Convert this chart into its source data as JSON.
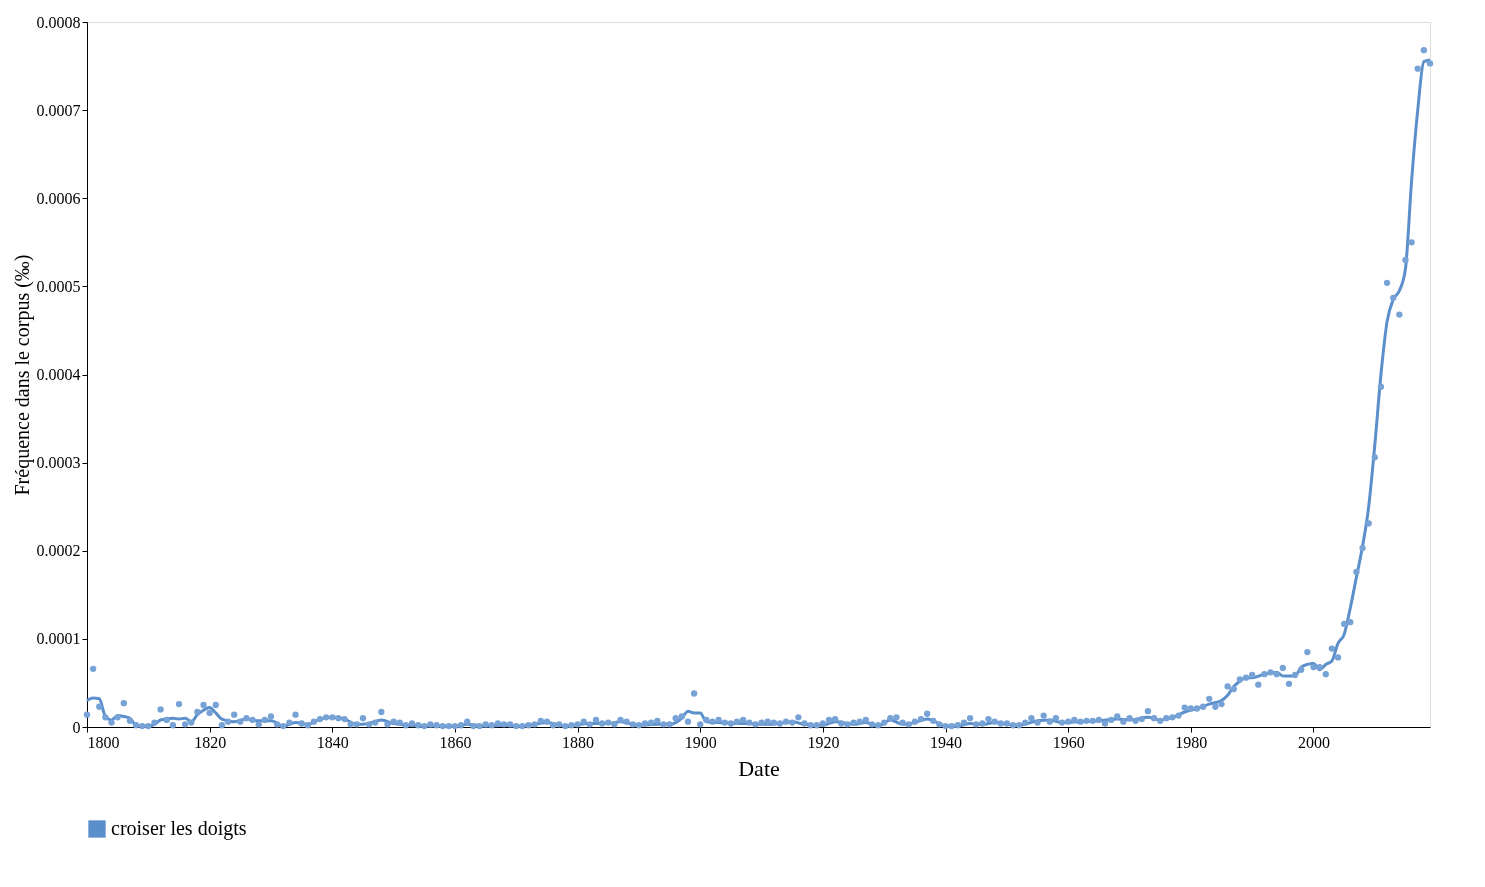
{
  "chart_data": {
    "type": "scatter",
    "xlabel": "Date",
    "ylabel": "Fréquence dans le corpus (‰)",
    "xlim": [
      1800,
      2019
    ],
    "xticks": [
      1800,
      1820,
      1840,
      1860,
      1880,
      1900,
      1920,
      1940,
      1960,
      1980,
      2000
    ],
    "ylim": [
      0,
      0.0008
    ],
    "yticks": [
      0,
      0.0001,
      0.0002,
      0.0003,
      0.0004,
      0.0005,
      0.0006,
      0.0007,
      0.0008
    ],
    "grid": false,
    "legend": "bottom left",
    "series": [
      {
        "color": "#76a2d6",
        "marker": "circle",
        "x": [
          1800,
          1801,
          1802,
          1803,
          1804,
          1805,
          1806,
          1807,
          1808,
          1809,
          1810,
          1811,
          1812,
          1813,
          1814,
          1815,
          1816,
          1817,
          1818,
          1819,
          1820,
          1821,
          1822,
          1823,
          1824,
          1825,
          1826,
          1827,
          1828,
          1829,
          1830,
          1831,
          1832,
          1833,
          1834,
          1835,
          1836,
          1837,
          1838,
          1839,
          1840,
          1841,
          1842,
          1843,
          1844,
          1845,
          1846,
          1847,
          1848,
          1849,
          1850,
          1851,
          1852,
          1853,
          1854,
          1855,
          1856,
          1857,
          1858,
          1859,
          1860,
          1861,
          1862,
          1863,
          1864,
          1865,
          1866,
          1867,
          1868,
          1869,
          1870,
          1871,
          1872,
          1873,
          1874,
          1875,
          1876,
          1877,
          1878,
          1879,
          1880,
          1881,
          1882,
          1883,
          1884,
          1885,
          1886,
          1887,
          1888,
          1889,
          1890,
          1891,
          1892,
          1893,
          1894,
          1895,
          1896,
          1897,
          1898,
          1899,
          1900,
          1901,
          1902,
          1903,
          1904,
          1905,
          1906,
          1907,
          1908,
          1909,
          1910,
          1911,
          1912,
          1913,
          1914,
          1915,
          1916,
          1917,
          1918,
          1919,
          1920,
          1921,
          1922,
          1923,
          1924,
          1925,
          1926,
          1927,
          1928,
          1929,
          1930,
          1931,
          1932,
          1933,
          1934,
          1935,
          1936,
          1937,
          1938,
          1939,
          1940,
          1941,
          1942,
          1943,
          1944,
          1945,
          1946,
          1947,
          1948,
          1949,
          1950,
          1951,
          1952,
          1953,
          1954,
          1955,
          1956,
          1957,
          1958,
          1959,
          1960,
          1961,
          1962,
          1963,
          1964,
          1965,
          1966,
          1967,
          1968,
          1969,
          1970,
          1971,
          1972,
          1973,
          1974,
          1975,
          1976,
          1977,
          1978,
          1979,
          1980,
          1981,
          1982,
          1983,
          1984,
          1985,
          1986,
          1987,
          1988,
          1989,
          1990,
          1991,
          1992,
          1993,
          1994,
          1995,
          1996,
          1997,
          1998,
          1999,
          2000,
          2001,
          2002,
          2003,
          2004,
          2005,
          2006,
          2007,
          2008,
          2009,
          2010,
          2011,
          2012,
          2013,
          2014,
          2015,
          2016,
          2017,
          2018,
          2019
        ],
        "values": [
          1.4e-05,
          6.6e-05,
          2.3e-05,
          1.1e-05,
          5e-06,
          1.1e-05,
          2.7e-05,
          7e-06,
          2e-06,
          1e-06,
          1e-06,
          5e-06,
          2e-05,
          8e-06,
          2e-06,
          2.6e-05,
          3e-06,
          5e-06,
          1.7e-05,
          2.5e-05,
          1.6e-05,
          2.5e-05,
          2e-06,
          6e-06,
          1.4e-05,
          6e-06,
          1e-05,
          8e-06,
          3e-06,
          8e-06,
          1.2e-05,
          3e-06,
          1e-06,
          5e-06,
          1.4e-05,
          4e-06,
          2e-06,
          6e-06,
          9e-06,
          1.1e-05,
          1.1e-05,
          1e-05,
          9e-06,
          3e-06,
          3e-06,
          1e-05,
          3e-06,
          5e-06,
          1.7e-05,
          3e-06,
          6e-06,
          5e-06,
          2e-06,
          4e-06,
          2e-06,
          1e-06,
          3e-06,
          2e-06,
          1e-06,
          1e-06,
          1e-06,
          2e-06,
          6e-06,
          1e-06,
          1e-06,
          3e-06,
          2e-06,
          4e-06,
          3e-06,
          3e-06,
          1e-06,
          1e-06,
          2e-06,
          3e-06,
          7e-06,
          6e-06,
          2e-06,
          3e-06,
          1e-06,
          2e-06,
          3e-06,
          6e-06,
          3e-06,
          8e-06,
          4e-06,
          5e-06,
          3e-06,
          8e-06,
          6e-06,
          3e-06,
          2e-06,
          4e-06,
          5e-06,
          7e-06,
          3e-06,
          3e-06,
          1e-05,
          1.2e-05,
          6e-06,
          3.8e-05,
          3e-06,
          8e-06,
          6e-06,
          8e-06,
          5e-06,
          4e-06,
          6e-06,
          8e-06,
          5e-06,
          3e-06,
          5e-06,
          6e-06,
          5e-06,
          4e-06,
          6e-06,
          5e-06,
          1.1e-05,
          4e-06,
          2e-06,
          2e-06,
          4e-06,
          8e-06,
          9e-06,
          4e-06,
          3e-06,
          5e-06,
          6e-06,
          8e-06,
          3e-06,
          2e-06,
          5e-06,
          1e-05,
          1.1e-05,
          5e-06,
          3e-06,
          6e-06,
          9e-06,
          1.5e-05,
          7e-06,
          3e-06,
          1e-06,
          1e-06,
          2e-06,
          5e-06,
          1e-05,
          3e-06,
          4e-06,
          9e-06,
          6e-06,
          4e-06,
          4e-06,
          2e-06,
          2e-06,
          5e-06,
          1e-05,
          5e-06,
          1.3e-05,
          6e-06,
          1e-05,
          5e-06,
          6e-06,
          8e-06,
          6e-06,
          7e-06,
          7e-06,
          8e-06,
          4e-06,
          8e-06,
          1.2e-05,
          6e-06,
          1e-05,
          7e-06,
          9e-06,
          1.8e-05,
          1e-05,
          7e-06,
          1e-05,
          1.1e-05,
          1.3e-05,
          2.2e-05,
          2.1e-05,
          2.1e-05,
          2.3e-05,
          3.2e-05,
          2.3e-05,
          2.6e-05,
          4.6e-05,
          4.3e-05,
          5.4e-05,
          5.6e-05,
          5.9e-05,
          4.8e-05,
          6e-05,
          6.2e-05,
          6e-05,
          6.7e-05,
          4.9e-05,
          5.9e-05,
          6.5e-05,
          8.5e-05,
          6.8e-05,
          6.8e-05,
          6e-05,
          8.9e-05,
          7.9e-05,
          0.000117,
          0.000119,
          0.000176,
          0.000203,
          0.000231,
          0.000306,
          0.000386,
          0.000504,
          0.000487,
          0.000468,
          0.00053,
          0.00055,
          0.000747,
          0.000768,
          0.000753
        ]
      },
      {
        "type": "line",
        "name": "croiser les doigts",
        "color": "#5b8fcb",
        "marker": "none",
        "line_style": "solid",
        "x": [
          1800,
          1801,
          1802,
          1803,
          1804,
          1805,
          1806,
          1807,
          1808,
          1810,
          1811,
          1812,
          1814,
          1815,
          1816,
          1817,
          1818,
          1819,
          1820,
          1821,
          1822,
          1824,
          1826,
          1828,
          1830,
          1832,
          1834,
          1836,
          1838,
          1840,
          1842,
          1844,
          1846,
          1848,
          1850,
          1855,
          1860,
          1862,
          1865,
          1868,
          1870,
          1873,
          1875,
          1878,
          1882,
          1885,
          1887,
          1890,
          1893,
          1895,
          1897,
          1898,
          1899,
          1900,
          1901,
          1903,
          1906,
          1908,
          1910,
          1913,
          1915,
          1917,
          1920,
          1922,
          1925,
          1927,
          1929,
          1931,
          1933,
          1935,
          1937,
          1938,
          1940,
          1942,
          1944,
          1946,
          1948,
          1950,
          1952,
          1955,
          1957,
          1959,
          1962,
          1965,
          1968,
          1970,
          1973,
          1975,
          1977,
          1979,
          1981,
          1983,
          1985,
          1986,
          1987,
          1988,
          1989,
          1990,
          1992,
          1993,
          1994,
          1995,
          1997,
          1998,
          1999,
          2000,
          2001,
          2002,
          2003,
          2004,
          2005,
          2006,
          2007,
          2008,
          2009,
          2010,
          2011,
          2012,
          2013,
          2014,
          2015,
          2016,
          2017,
          2018,
          2019
        ],
        "values": [
          3e-05,
          3.3e-05,
          3.2e-05,
          1.2e-05,
          8e-06,
          1.3e-05,
          1.2e-05,
          1e-05,
          2e-06,
          1e-06,
          3e-06,
          8e-06,
          1e-05,
          9e-06,
          1e-05,
          6e-06,
          1.4e-05,
          1.9e-05,
          2.2e-05,
          1.6e-05,
          9e-06,
          6e-06,
          9e-06,
          7e-06,
          7e-06,
          1e-06,
          5e-06,
          3e-06,
          9e-06,
          1.1e-05,
          9e-06,
          3e-06,
          4e-06,
          8e-06,
          4e-06,
          1e-06,
          1e-06,
          3e-06,
          1e-06,
          2e-06,
          1e-06,
          3e-06,
          5e-06,
          1e-06,
          4e-06,
          4e-06,
          6e-06,
          2e-06,
          3e-06,
          3e-06,
          1e-05,
          1.8e-05,
          1.6e-05,
          1.6e-05,
          6e-06,
          5e-06,
          4e-06,
          4e-06,
          3e-06,
          4e-06,
          6e-06,
          3e-06,
          2e-06,
          6e-06,
          3e-06,
          5e-06,
          1e-06,
          8e-06,
          3e-06,
          5e-06,
          9e-06,
          7e-06,
          1e-06,
          1e-06,
          4e-06,
          3e-06,
          5e-06,
          3e-06,
          2e-06,
          7e-06,
          8e-06,
          5e-06,
          6e-06,
          7e-06,
          9e-06,
          8e-06,
          1.1e-05,
          8e-06,
          1.1e-05,
          1.7e-05,
          2.1e-05,
          2.6e-05,
          3e-05,
          3.6e-05,
          4.6e-05,
          5.2e-05,
          5.6e-05,
          5.6e-05,
          6e-05,
          6.1e-05,
          6.2e-05,
          5.8e-05,
          5.8e-05,
          6.8e-05,
          7.1e-05,
          7.2e-05,
          6.5e-05,
          7.1e-05,
          7.5e-05,
          9.5e-05,
          0.000105,
          0.000135,
          0.00017,
          0.000205,
          0.00025,
          0.00032,
          0.0004,
          0.00046,
          0.000485,
          0.000495,
          0.00052,
          0.00062,
          0.0007,
          0.000755,
          0.000757
        ]
      }
    ]
  }
}
